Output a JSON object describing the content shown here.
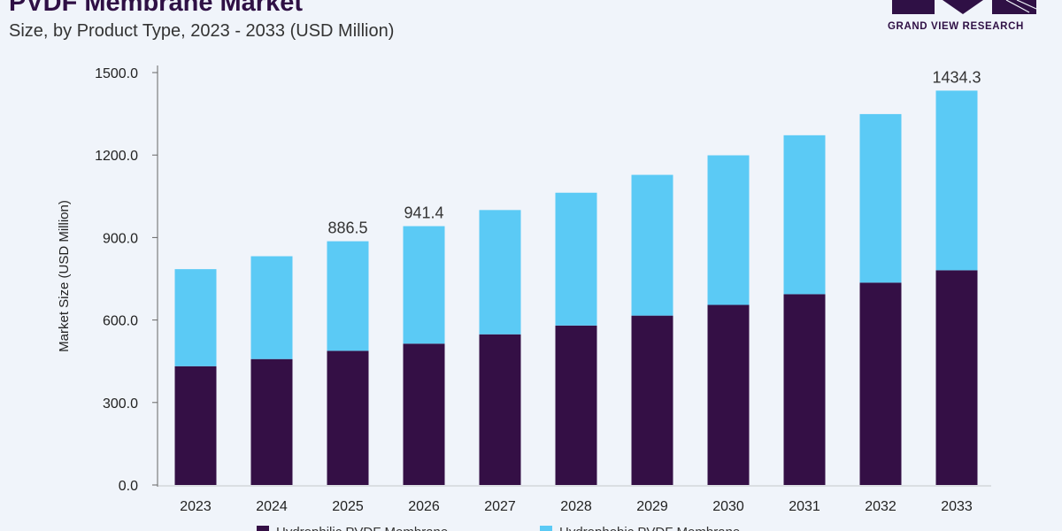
{
  "header": {
    "title": "PVDF Membrane Market",
    "subtitle": "Size, by Product Type, 2023 - 2033 (USD Million)"
  },
  "logo": {
    "text": "GRAND VIEW RESEARCH",
    "color": "#2f1045"
  },
  "chart_data": {
    "type": "bar",
    "stacked": true,
    "title": "PVDF Membrane Market",
    "subtitle": "Size, by Product Type, 2023 - 2033 (USD Million)",
    "ylabel": "Market Size (USD Million)",
    "xlabel": "",
    "ylim": [
      0,
      1500
    ],
    "yticks": [
      "0.0",
      "300.0",
      "600.0",
      "900.0",
      "1200.0",
      "1500.0"
    ],
    "grid": false,
    "legend": "bottom",
    "categories": [
      "2023",
      "2024",
      "2025",
      "2026",
      "2027",
      "2028",
      "2029",
      "2030",
      "2031",
      "2032",
      "2033"
    ],
    "series": [
      {
        "name": "Hydrophilic PVDF Membrane",
        "color": "#340f45",
        "values": [
          432,
          458,
          488,
          514,
          548,
          580,
          616,
          655,
          694,
          736,
          781
        ]
      },
      {
        "name": "Hydrophobic PVDF Membrane",
        "color": "#5bcaf5",
        "values": [
          353,
          374,
          398.5,
          427.4,
          452,
          483,
          512,
          544,
          578,
          613,
          653.3
        ]
      }
    ],
    "data_labels": [
      {
        "category": "2025",
        "text": "886.5"
      },
      {
        "category": "2026",
        "text": "941.4"
      },
      {
        "category": "2033",
        "text": "1434.3"
      }
    ]
  }
}
